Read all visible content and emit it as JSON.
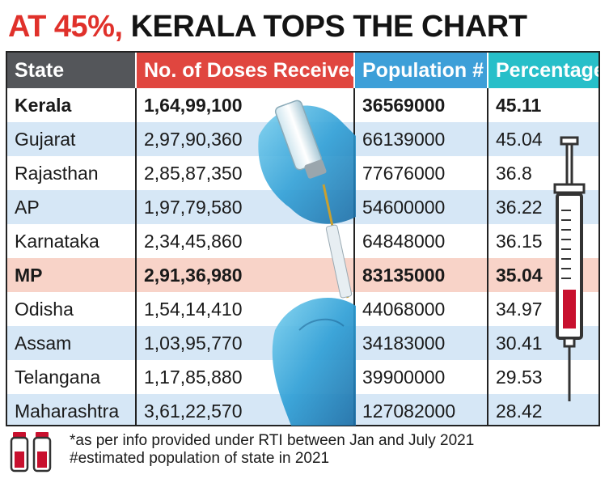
{
  "title": {
    "accent": "AT 45%,",
    "rest": "KERALA TOPS THE CHART"
  },
  "chart_data": {
    "type": "table",
    "title": "AT 45%, KERALA TOPS THE CHART",
    "columns": [
      "State",
      "No. of Doses Received*",
      "Population #",
      "Percentage"
    ],
    "rows": [
      {
        "state": "Kerala",
        "doses": "1,64,99,100",
        "population": "36569000",
        "percentage": "45.11",
        "bold": true,
        "highlight": false
      },
      {
        "state": "Gujarat",
        "doses": "2,97,90,360",
        "population": "66139000",
        "percentage": "45.04",
        "bold": false,
        "highlight": false
      },
      {
        "state": "Rajasthan",
        "doses": "2,85,87,350",
        "population": "77676000",
        "percentage": "36.8",
        "bold": false,
        "highlight": false
      },
      {
        "state": "AP",
        "doses": "1,97,79,580",
        "population": "54600000",
        "percentage": "36.22",
        "bold": false,
        "highlight": false
      },
      {
        "state": "Karnataka",
        "doses": "2,34,45,860",
        "population": "64848000",
        "percentage": "36.15",
        "bold": false,
        "highlight": false
      },
      {
        "state": "MP",
        "doses": "2,91,36,980",
        "population": "83135000",
        "percentage": "35.04",
        "bold": true,
        "highlight": true
      },
      {
        "state": "Odisha",
        "doses": "1,54,14,410",
        "population": "44068000",
        "percentage": "34.97",
        "bold": false,
        "highlight": false
      },
      {
        "state": "Assam",
        "doses": "1,03,95,770",
        "population": "34183000",
        "percentage": "30.41",
        "bold": false,
        "highlight": false
      },
      {
        "state": "Telangana",
        "doses": "1,17,85,880",
        "population": "39900000",
        "percentage": "29.53",
        "bold": false,
        "highlight": false
      },
      {
        "state": "Maharashtra",
        "doses": "3,61,22,570",
        "population": "127082000",
        "percentage": "28.42",
        "bold": false,
        "highlight": false
      }
    ]
  },
  "footnotes": [
    "*as per info provided under RTI between Jan and July 2021",
    "#estimated population of state in 2021"
  ],
  "colors": {
    "title_accent": "#e0312b",
    "header_state": "#54565a",
    "header_doses": "#e0463f",
    "header_population": "#3d9fd8",
    "header_percentage": "#27bfc9",
    "row_alt": "#d6e7f6",
    "row_highlight": "#f8d3c8",
    "syringe_fill": "#c8102e"
  },
  "icons": {
    "vaccine_illustration": "gloved-hand-vaccine-vial-icon",
    "syringe": "syringe-icon",
    "vials": "vaccine-vials-icon"
  }
}
